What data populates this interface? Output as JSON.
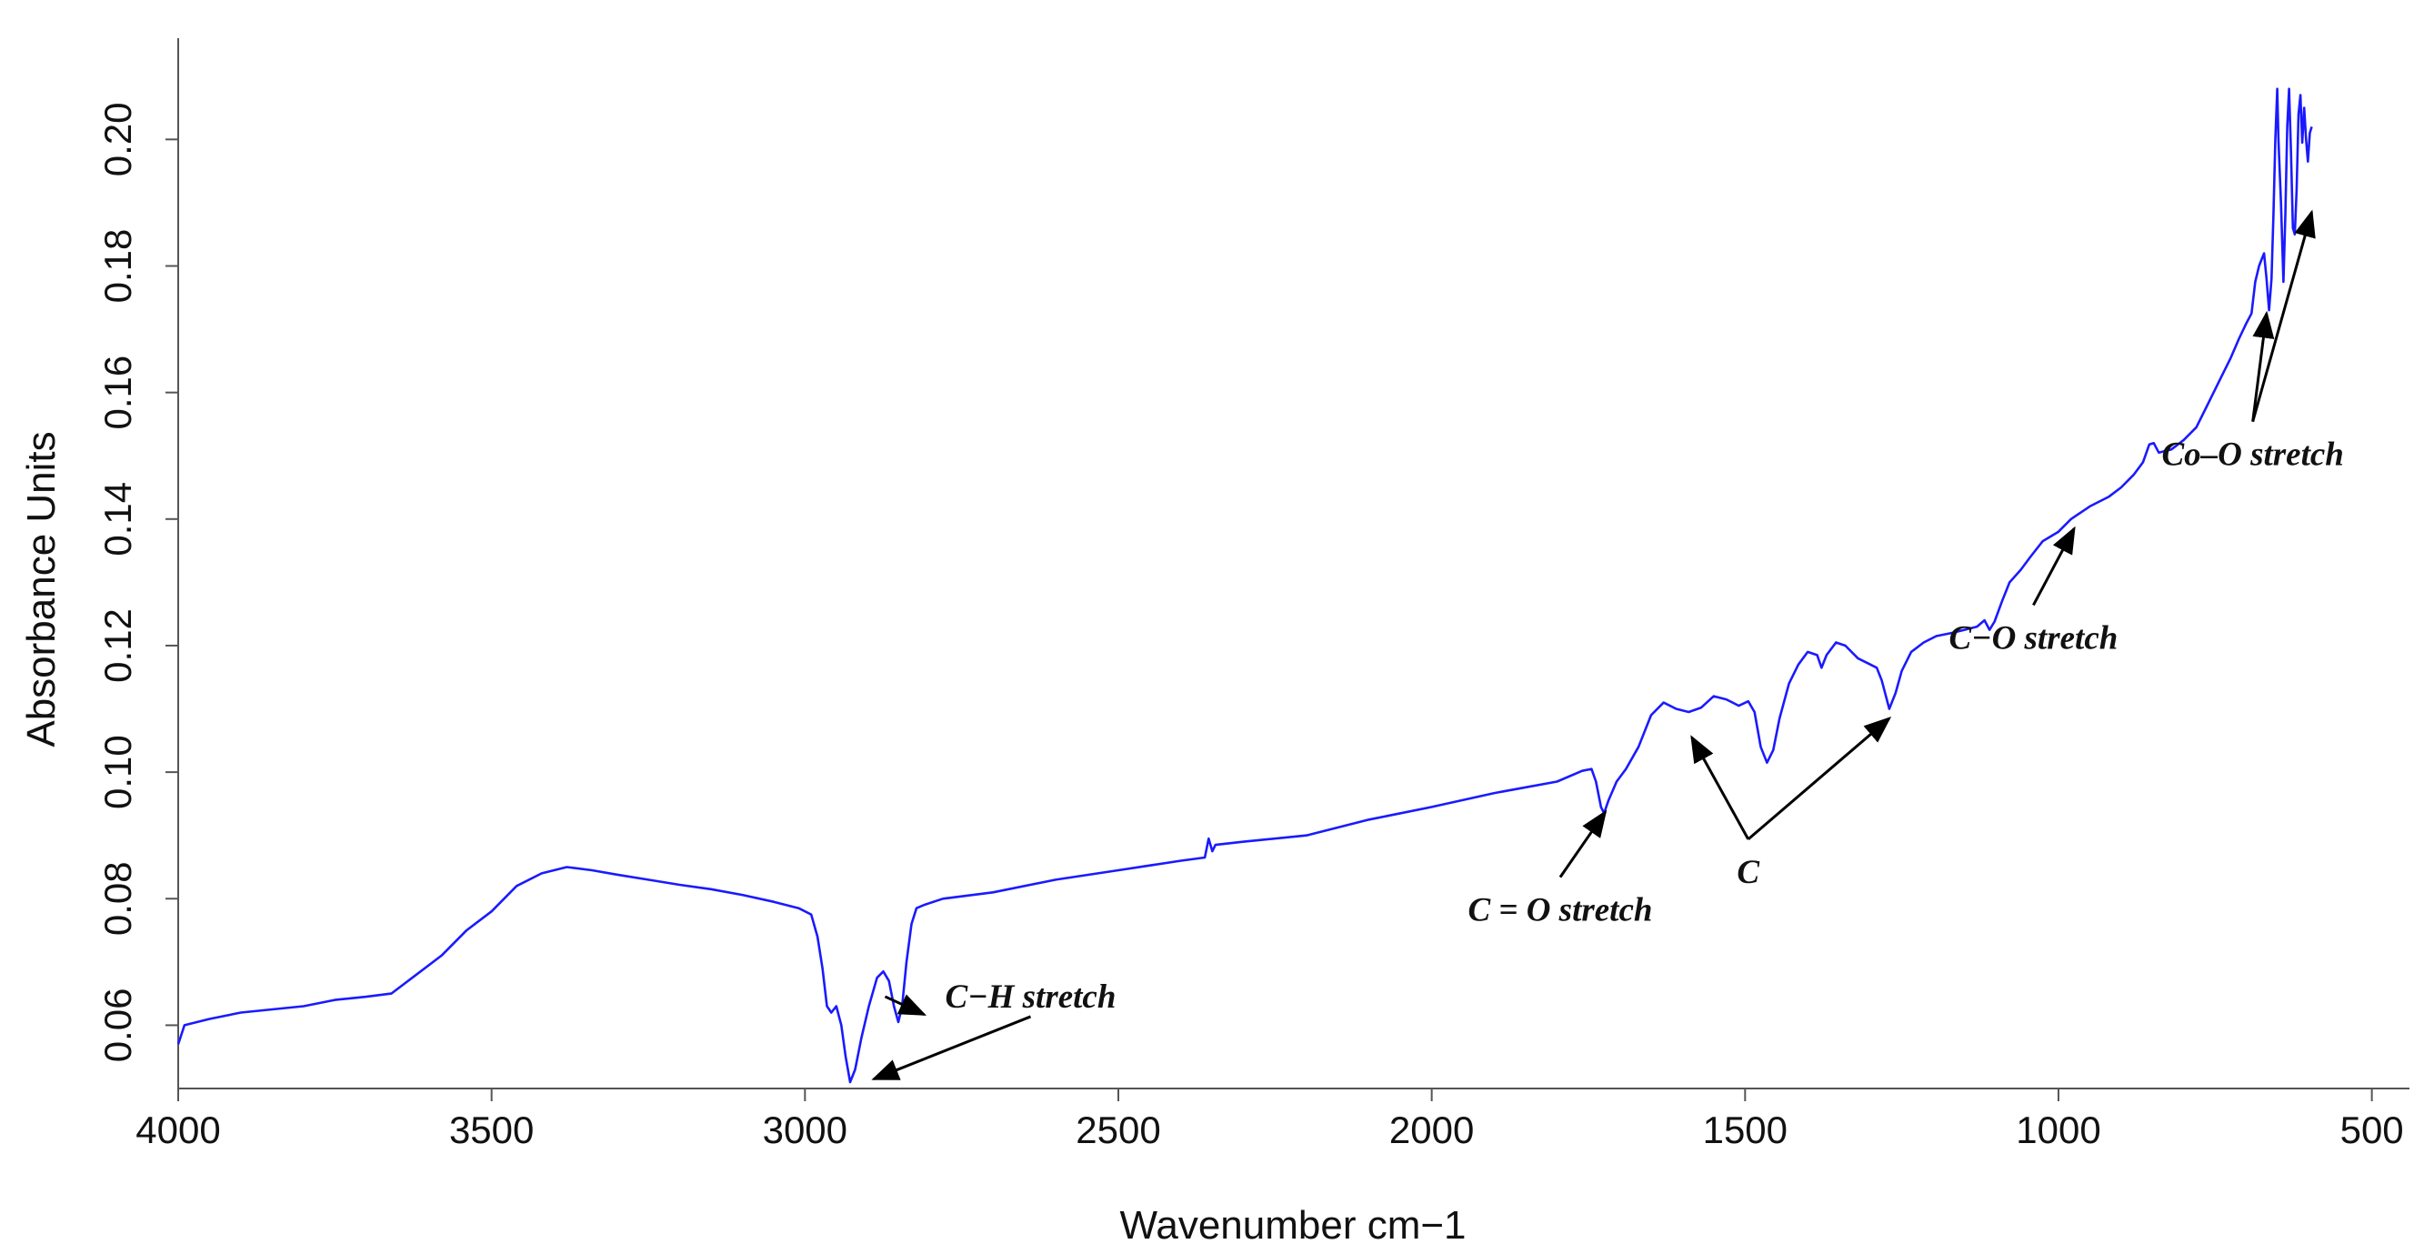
{
  "chart_data": {
    "type": "line",
    "xlabel": "Wavenumber cm−1",
    "ylabel": "Absorbance Units",
    "xlim": [
      4000,
      440
    ],
    "x_reversed": true,
    "ylim": [
      0.05,
      0.216
    ],
    "x_ticks": [
      4000,
      3500,
      3000,
      2500,
      2000,
      1500,
      1000,
      500
    ],
    "y_ticks": [
      0.06,
      0.08,
      0.1,
      0.12,
      0.14,
      0.16,
      0.18,
      0.2
    ],
    "x_tick_labels": [
      "4000",
      "3500",
      "3000",
      "2500",
      "2000",
      "1500",
      "1000",
      "500"
    ],
    "y_tick_labels": [
      "0.06",
      "0.08",
      "0.10",
      "0.12",
      "0.14",
      "0.16",
      "0.18",
      "0.20"
    ],
    "grid": false,
    "series": [
      {
        "color": "#1a1aff",
        "points": [
          [
            4000,
            0.057
          ],
          [
            3990,
            0.06
          ],
          [
            3950,
            0.061
          ],
          [
            3900,
            0.062
          ],
          [
            3850,
            0.0625
          ],
          [
            3800,
            0.063
          ],
          [
            3750,
            0.064
          ],
          [
            3700,
            0.0645
          ],
          [
            3660,
            0.065
          ],
          [
            3620,
            0.068
          ],
          [
            3580,
            0.071
          ],
          [
            3540,
            0.075
          ],
          [
            3500,
            0.078
          ],
          [
            3460,
            0.082
          ],
          [
            3420,
            0.084
          ],
          [
            3380,
            0.085
          ],
          [
            3340,
            0.0845
          ],
          [
            3300,
            0.0838
          ],
          [
            3250,
            0.083
          ],
          [
            3200,
            0.0822
          ],
          [
            3150,
            0.0815
          ],
          [
            3100,
            0.0806
          ],
          [
            3050,
            0.0795
          ],
          [
            3010,
            0.0785
          ],
          [
            2990,
            0.0775
          ],
          [
            2980,
            0.074
          ],
          [
            2972,
            0.069
          ],
          [
            2965,
            0.063
          ],
          [
            2958,
            0.062
          ],
          [
            2950,
            0.063
          ],
          [
            2942,
            0.06
          ],
          [
            2935,
            0.055
          ],
          [
            2928,
            0.051
          ],
          [
            2920,
            0.053
          ],
          [
            2910,
            0.058
          ],
          [
            2898,
            0.063
          ],
          [
            2885,
            0.0675
          ],
          [
            2875,
            0.0685
          ],
          [
            2866,
            0.067
          ],
          [
            2858,
            0.063
          ],
          [
            2851,
            0.0605
          ],
          [
            2845,
            0.063
          ],
          [
            2838,
            0.07
          ],
          [
            2830,
            0.076
          ],
          [
            2822,
            0.0785
          ],
          [
            2810,
            0.079
          ],
          [
            2780,
            0.08
          ],
          [
            2700,
            0.081
          ],
          [
            2600,
            0.083
          ],
          [
            2500,
            0.0845
          ],
          [
            2400,
            0.086
          ],
          [
            2362,
            0.0865
          ],
          [
            2356,
            0.0895
          ],
          [
            2350,
            0.0875
          ],
          [
            2345,
            0.0885
          ],
          [
            2300,
            0.089
          ],
          [
            2200,
            0.09
          ],
          [
            2100,
            0.0925
          ],
          [
            2000,
            0.0945
          ],
          [
            1900,
            0.0967
          ],
          [
            1800,
            0.0985
          ],
          [
            1760,
            0.1002
          ],
          [
            1745,
            0.1005
          ],
          [
            1738,
            0.0985
          ],
          [
            1730,
            0.0945
          ],
          [
            1725,
            0.0935
          ],
          [
            1718,
            0.0955
          ],
          [
            1705,
            0.0985
          ],
          [
            1690,
            0.1005
          ],
          [
            1670,
            0.104
          ],
          [
            1650,
            0.109
          ],
          [
            1630,
            0.111
          ],
          [
            1610,
            0.11
          ],
          [
            1590,
            0.1095
          ],
          [
            1570,
            0.1102
          ],
          [
            1550,
            0.112
          ],
          [
            1530,
            0.1115
          ],
          [
            1510,
            0.1105
          ],
          [
            1495,
            0.1112
          ],
          [
            1485,
            0.1095
          ],
          [
            1475,
            0.104
          ],
          [
            1465,
            0.1015
          ],
          [
            1455,
            0.1035
          ],
          [
            1445,
            0.1085
          ],
          [
            1430,
            0.114
          ],
          [
            1415,
            0.117
          ],
          [
            1400,
            0.119
          ],
          [
            1385,
            0.1185
          ],
          [
            1378,
            0.1165
          ],
          [
            1370,
            0.1185
          ],
          [
            1355,
            0.1205
          ],
          [
            1340,
            0.12
          ],
          [
            1320,
            0.118
          ],
          [
            1300,
            0.117
          ],
          [
            1290,
            0.1165
          ],
          [
            1282,
            0.1145
          ],
          [
            1270,
            0.11
          ],
          [
            1260,
            0.1125
          ],
          [
            1250,
            0.116
          ],
          [
            1235,
            0.119
          ],
          [
            1215,
            0.1205
          ],
          [
            1195,
            0.1215
          ],
          [
            1170,
            0.122
          ],
          [
            1150,
            0.1225
          ],
          [
            1130,
            0.123
          ],
          [
            1118,
            0.124
          ],
          [
            1110,
            0.1225
          ],
          [
            1102,
            0.1238
          ],
          [
            1090,
            0.127
          ],
          [
            1078,
            0.13
          ],
          [
            1060,
            0.132
          ],
          [
            1045,
            0.134
          ],
          [
            1025,
            0.1365
          ],
          [
            1000,
            0.138
          ],
          [
            980,
            0.14
          ],
          [
            950,
            0.142
          ],
          [
            920,
            0.1435
          ],
          [
            900,
            0.145
          ],
          [
            880,
            0.147
          ],
          [
            865,
            0.149
          ],
          [
            855,
            0.1518
          ],
          [
            848,
            0.152
          ],
          [
            840,
            0.1505
          ],
          [
            820,
            0.151
          ],
          [
            800,
            0.1525
          ],
          [
            780,
            0.1545
          ],
          [
            765,
            0.1575
          ],
          [
            755,
            0.1595
          ],
          [
            740,
            0.1625
          ],
          [
            725,
            0.1655
          ],
          [
            712,
            0.1685
          ],
          [
            700,
            0.171
          ],
          [
            692,
            0.1725
          ],
          [
            686,
            0.1775
          ],
          [
            680,
            0.18
          ],
          [
            676,
            0.181
          ],
          [
            672,
            0.182
          ],
          [
            668,
            0.178
          ],
          [
            664,
            0.173
          ],
          [
            660,
            0.178
          ],
          [
            657,
            0.188
          ],
          [
            654,
            0.2
          ],
          [
            651,
            0.208
          ],
          [
            649,
            0.2
          ],
          [
            645,
            0.19
          ],
          [
            641,
            0.1775
          ],
          [
            638,
            0.188
          ],
          [
            635,
            0.202
          ],
          [
            632,
            0.208
          ],
          [
            629,
            0.198
          ],
          [
            626,
            0.186
          ],
          [
            623,
            0.185
          ],
          [
            620,
            0.192
          ],
          [
            617,
            0.204
          ],
          [
            614,
            0.207
          ],
          [
            611,
            0.1995
          ],
          [
            608,
            0.205
          ],
          [
            605,
            0.2
          ],
          [
            602,
            0.1965
          ],
          [
            599,
            0.201
          ],
          [
            596,
            0.202
          ]
        ]
      }
    ],
    "annotations": [
      {
        "text": "C−H stretch",
        "x": 2640,
        "y": 0.0628,
        "arrows": [
          [
            2810,
            0.0617
          ],
          [
            2890,
            0.0515
          ]
        ]
      },
      {
        "text": "C = O stretch",
        "x": 1795,
        "y": 0.0765,
        "arrows": [
          [
            1723,
            0.0937
          ]
        ]
      },
      {
        "text": "C",
        "x": 1495,
        "y": 0.0825,
        "arrows": [
          [
            1585,
            0.1055
          ],
          [
            1270,
            0.1085
          ]
        ]
      },
      {
        "text": "C−O stretch",
        "x": 1040,
        "y": 0.1195,
        "arrows": [
          [
            975,
            0.1385
          ]
        ]
      },
      {
        "text": "Co–O stretch",
        "x": 690,
        "y": 0.1485,
        "arrows": [
          [
            668,
            0.1725
          ],
          [
            596,
            0.1885
          ]
        ]
      }
    ]
  }
}
